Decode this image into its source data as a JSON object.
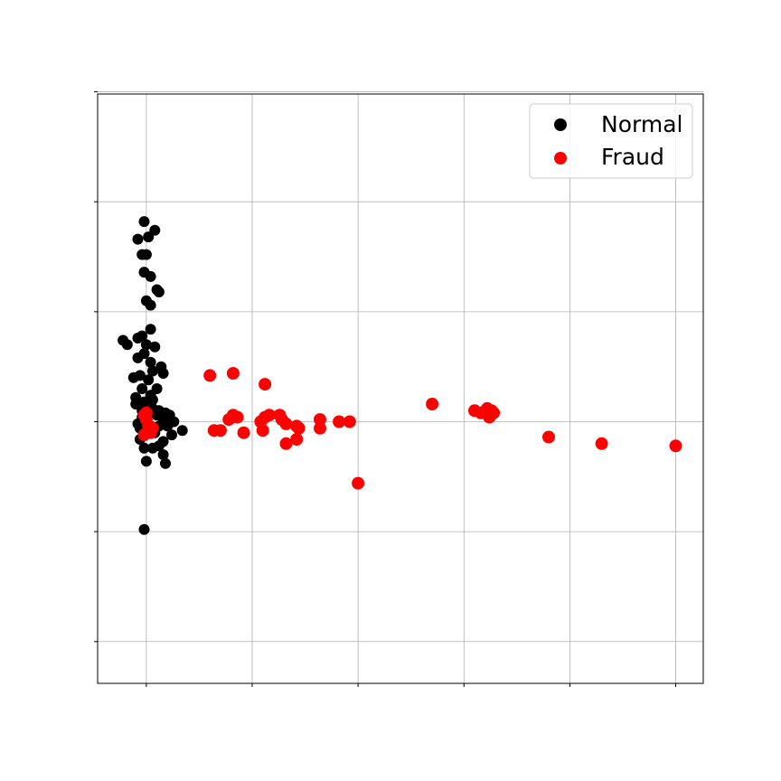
{
  "chart_data": {
    "type": "scatter",
    "title": "",
    "xlabel": "",
    "ylabel": "",
    "xlim": [
      -0.23,
      2.63
    ],
    "ylim": [
      -1.19,
      1.49
    ],
    "xticks": [
      0,
      0.5,
      1,
      1.5,
      2,
      2.5
    ],
    "yticks": [
      -1,
      -0.5,
      0,
      0.5,
      1,
      1.5
    ],
    "tick_labels_visible": false,
    "grid": true,
    "legend": {
      "position": "top-right"
    },
    "series": [
      {
        "name": "Normal",
        "color": "#000000",
        "points": [
          [
            0.0,
            0.0
          ],
          [
            0.01,
            0.03
          ],
          [
            0.02,
            -0.02
          ],
          [
            -0.02,
            0.05
          ],
          [
            0.03,
            0.06
          ],
          [
            -0.03,
            -0.03
          ],
          [
            0.04,
            -0.05
          ],
          [
            -0.01,
            0.09
          ],
          [
            0.02,
            0.12
          ],
          [
            -0.02,
            0.15
          ],
          [
            0.01,
            0.19
          ],
          [
            0.03,
            0.23
          ],
          [
            -0.03,
            0.21
          ],
          [
            0.02,
            0.27
          ],
          [
            -0.01,
            0.31
          ],
          [
            0.0,
            0.35
          ],
          [
            -0.02,
            0.39
          ],
          [
            0.02,
            0.42
          ],
          [
            -0.04,
            0.38
          ],
          [
            0.05,
            0.15
          ],
          [
            0.08,
            0.22
          ],
          [
            -0.05,
            0.08
          ],
          [
            0.06,
            0.05
          ],
          [
            0.08,
            0.0
          ],
          [
            0.1,
            -0.02
          ],
          [
            0.13,
            0.0
          ],
          [
            0.17,
            -0.04
          ],
          [
            0.12,
            -0.06
          ],
          [
            0.08,
            -0.09
          ],
          [
            0.06,
            -0.11
          ],
          [
            0.03,
            -0.12
          ],
          [
            0.0,
            -0.18
          ],
          [
            0.08,
            -0.15
          ],
          [
            0.09,
            -0.19
          ],
          [
            -0.01,
            -0.12
          ],
          [
            -0.03,
            -0.08
          ],
          [
            -0.05,
            0.11
          ],
          [
            -0.06,
            0.2
          ],
          [
            -0.09,
            0.35
          ],
          [
            -0.11,
            0.37
          ],
          [
            0.04,
            0.34
          ],
          [
            0.02,
            0.53
          ],
          [
            0.0,
            0.55
          ],
          [
            0.06,
            0.59
          ],
          [
            0.05,
            0.6
          ],
          [
            0.02,
            0.66
          ],
          [
            -0.01,
            0.68
          ],
          [
            0.0,
            0.76
          ],
          [
            -0.02,
            0.76
          ],
          [
            -0.04,
            0.83
          ],
          [
            0.01,
            0.84
          ],
          [
            0.04,
            0.87
          ],
          [
            -0.01,
            0.91
          ],
          [
            -0.01,
            -0.49
          ],
          [
            0.07,
            0.25
          ],
          [
            -0.04,
            0.29
          ],
          [
            0.01,
            -0.03
          ],
          [
            -0.04,
            -0.01
          ],
          [
            0.05,
            0.03
          ],
          [
            0.03,
            0.1
          ],
          [
            -0.02,
            0.02
          ],
          [
            0.06,
            -0.02
          ],
          [
            0.09,
            0.04
          ],
          [
            0.11,
            0.03
          ]
        ]
      },
      {
        "name": "Fraud",
        "color": "#ff0000",
        "points": [
          [
            -0.01,
            0.03
          ],
          [
            0.01,
            -0.02
          ],
          [
            0.0,
            0.01
          ],
          [
            0.02,
            -0.05
          ],
          [
            -0.01,
            -0.06
          ],
          [
            0.03,
            -0.03
          ],
          [
            0.0,
            0.04
          ],
          [
            0.3,
            0.21
          ],
          [
            0.41,
            0.22
          ],
          [
            0.56,
            0.17
          ],
          [
            0.32,
            -0.04
          ],
          [
            0.35,
            -0.04
          ],
          [
            0.39,
            0.01
          ],
          [
            0.43,
            0.02
          ],
          [
            0.41,
            0.03
          ],
          [
            0.46,
            -0.05
          ],
          [
            0.54,
            0.0
          ],
          [
            0.55,
            -0.04
          ],
          [
            0.56,
            0.02
          ],
          [
            0.58,
            0.03
          ],
          [
            0.63,
            0.03
          ],
          [
            0.64,
            0.01
          ],
          [
            0.66,
            -0.01
          ],
          [
            0.66,
            -0.1
          ],
          [
            0.71,
            -0.08
          ],
          [
            0.71,
            -0.02
          ],
          [
            0.72,
            -0.03
          ],
          [
            0.82,
            0.01
          ],
          [
            0.82,
            -0.03
          ],
          [
            0.91,
            0.0
          ],
          [
            0.96,
            0.0
          ],
          [
            1.0,
            -0.28
          ],
          [
            1.35,
            0.08
          ],
          [
            1.55,
            0.05
          ],
          [
            1.58,
            0.04
          ],
          [
            1.61,
            0.06
          ],
          [
            1.62,
            0.02
          ],
          [
            1.63,
            0.05
          ],
          [
            1.64,
            0.04
          ],
          [
            1.9,
            -0.07
          ],
          [
            2.15,
            -0.1
          ],
          [
            2.5,
            -0.11
          ]
        ]
      }
    ]
  }
}
